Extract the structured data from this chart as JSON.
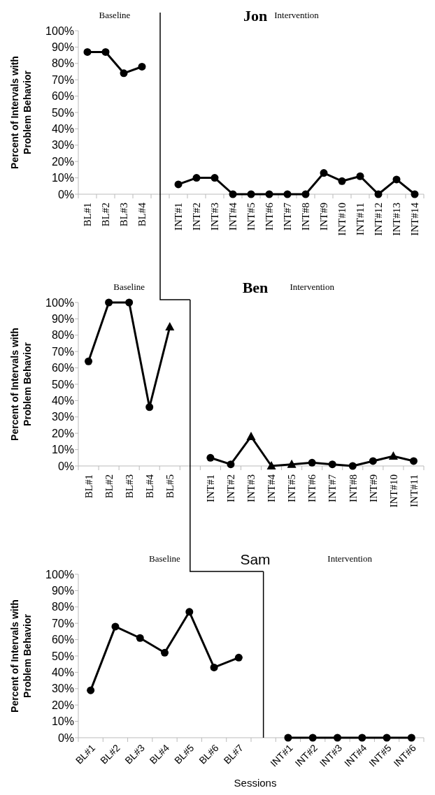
{
  "chart_data": [
    {
      "type": "line",
      "title": "Jon",
      "ylabel": "Percent of Intervals with Problem Behavior",
      "annotations": [
        "Baseline",
        "Intervention"
      ],
      "categories": [
        "BL#1",
        "BL#2",
        "BL#3",
        "BL#4",
        null,
        "INT#1",
        "INT#2",
        "INT#3",
        "INT#4",
        "INT#5",
        "INT#6",
        "INT#7",
        "INT#8",
        "INT#9",
        "INT#10",
        "INT#11",
        "INT#12",
        "INT#13",
        "INT#14"
      ],
      "series": [
        {
          "color": "#000000",
          "values": [
            87,
            87,
            74,
            78,
            null,
            6,
            10,
            10,
            0,
            0,
            0,
            0,
            0,
            13,
            8,
            11,
            0,
            9,
            0
          ]
        }
      ],
      "ylim": [
        0,
        100
      ],
      "yticks": [
        {
          "value": 0,
          "label": "0%"
        },
        {
          "value": 10,
          "label": "10%"
        },
        {
          "value": 20,
          "label": "20%"
        },
        {
          "value": 30,
          "label": "30%"
        },
        {
          "value": 40,
          "label": "40%"
        },
        {
          "value": 50,
          "label": "50%"
        },
        {
          "value": 60,
          "label": "60%"
        },
        {
          "value": 70,
          "label": "70%"
        },
        {
          "value": 80,
          "label": "80%"
        },
        {
          "value": 90,
          "label": "90%"
        },
        {
          "value": 100,
          "label": "100%"
        }
      ],
      "marker": "circle",
      "line_style": "solid",
      "ref_lines": [
        {
          "axis": "x",
          "value": null,
          "color": "#000000"
        }
      ]
    },
    {
      "type": "line",
      "title": "Ben",
      "ylabel": "Percent of Intervals with Problem Behavior",
      "annotations": [
        "Baseline",
        "Intervention"
      ],
      "categories": [
        "BL#1",
        "BL#2",
        "BL#3",
        "BL#4",
        "BL#5",
        null,
        "INT#1",
        "INT#2",
        "INT#3",
        "INT#4",
        "INT#5",
        "INT#6",
        "INT#7",
        "INT#8",
        "INT#9",
        "INT#10",
        "INT#11"
      ],
      "series": [
        {
          "color": "#000000",
          "marker": "none",
          "values": [
            64,
            100,
            100,
            36,
            85,
            null,
            5,
            1,
            18,
            0,
            1,
            2,
            1,
            0,
            3,
            6,
            3
          ]
        },
        {
          "type": "scatter",
          "color": "#000000",
          "marker": "circle",
          "values": [
            64,
            100,
            100,
            36,
            null,
            null,
            5,
            1,
            null,
            null,
            null,
            2,
            1,
            0,
            3,
            null,
            3
          ]
        },
        {
          "type": "scatter",
          "color": "#000000",
          "marker": "triangle",
          "values": [
            null,
            null,
            null,
            null,
            85,
            null,
            null,
            null,
            18,
            0,
            1,
            null,
            null,
            null,
            null,
            6,
            null
          ]
        }
      ],
      "ylim": [
        0,
        100
      ],
      "yticks": [
        {
          "value": 0,
          "label": "0%"
        },
        {
          "value": 10,
          "label": "10%"
        },
        {
          "value": 20,
          "label": "20%"
        },
        {
          "value": 30,
          "label": "30%"
        },
        {
          "value": 40,
          "label": "40%"
        },
        {
          "value": 50,
          "label": "50%"
        },
        {
          "value": 60,
          "label": "60%"
        },
        {
          "value": 70,
          "label": "70%"
        },
        {
          "value": 80,
          "label": "80%"
        },
        {
          "value": 90,
          "label": "90%"
        },
        {
          "value": 100,
          "label": "100%"
        }
      ],
      "line_style": "solid",
      "ref_lines": [
        {
          "axis": "x",
          "value": null,
          "color": "#000000"
        }
      ]
    },
    {
      "type": "line",
      "title": "Sam",
      "xlabel": "Sessions",
      "ylabel": "Percent of Intervals with Problem Behavior",
      "annotations": [
        "Baseline",
        "Intervention"
      ],
      "categories": [
        "BL#1",
        "BL#2",
        "BL#3",
        "BL#4",
        "BL#5",
        "BL#6",
        "BL#7",
        null,
        "INT#1",
        "INT#2",
        "INT#3",
        "INT#4",
        "INT#5",
        "INT#6"
      ],
      "series": [
        {
          "color": "#000000",
          "values": [
            29,
            68,
            61,
            52,
            77,
            43,
            49,
            null,
            0,
            0,
            0,
            0,
            0,
            0
          ]
        }
      ],
      "ylim": [
        0,
        100
      ],
      "yticks": [
        {
          "value": 0,
          "label": "0%"
        },
        {
          "value": 10,
          "label": "10%"
        },
        {
          "value": 20,
          "label": "20%"
        },
        {
          "value": 30,
          "label": "30%"
        },
        {
          "value": 40,
          "label": "40%"
        },
        {
          "value": 50,
          "label": "50%"
        },
        {
          "value": 60,
          "label": "60%"
        },
        {
          "value": 70,
          "label": "70%"
        },
        {
          "value": 80,
          "label": "80%"
        },
        {
          "value": 90,
          "label": "90%"
        },
        {
          "value": 100,
          "label": "100%"
        }
      ],
      "marker": "circle",
      "line_style": "solid",
      "ref_lines": [
        {
          "axis": "x",
          "value": null,
          "color": "#000000"
        }
      ]
    }
  ]
}
